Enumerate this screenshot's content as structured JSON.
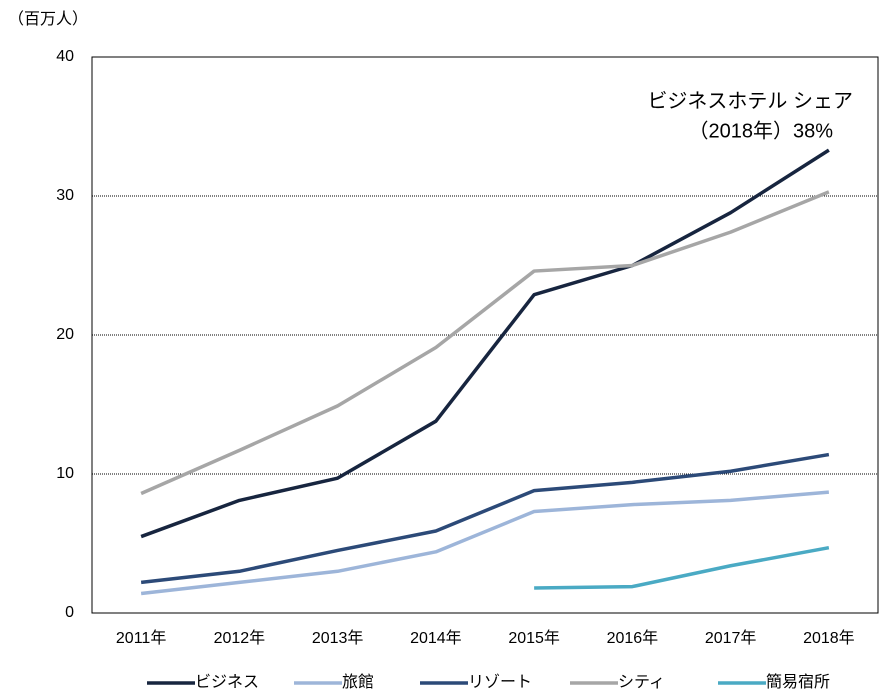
{
  "chart_data": {
    "type": "line",
    "y_unit": "（百万人）",
    "annotation": [
      "ビジネスホテル シェア",
      "（2018年）38%"
    ],
    "categories": [
      "2011年",
      "2012年",
      "2013年",
      "2014年",
      "2015年",
      "2016年",
      "2017年",
      "2018年"
    ],
    "series": [
      {
        "name": "ビジネス",
        "color": "#17253f",
        "values": [
          5.5,
          8.1,
          9.7,
          13.8,
          22.9,
          25.0,
          28.8,
          33.3
        ]
      },
      {
        "name": "旅館",
        "color": "#9db5d9",
        "values": [
          1.4,
          2.2,
          3.0,
          4.4,
          7.3,
          7.8,
          8.1,
          8.7
        ]
      },
      {
        "name": "リゾート",
        "color": "#2c4a78",
        "values": [
          2.2,
          3.0,
          4.5,
          5.9,
          8.8,
          9.4,
          10.2,
          11.4
        ]
      },
      {
        "name": "シティ",
        "color": "#a6a6a6",
        "values": [
          8.6,
          11.7,
          14.9,
          19.1,
          24.6,
          25.0,
          27.4,
          30.3
        ]
      },
      {
        "name": "簡易宿所",
        "color": "#4aaac4",
        "values": [
          null,
          null,
          null,
          null,
          1.8,
          1.9,
          3.4,
          4.7
        ]
      }
    ],
    "ylim": [
      0,
      40
    ],
    "yticks": [
      0,
      10,
      20,
      30,
      40
    ],
    "grid": true
  }
}
